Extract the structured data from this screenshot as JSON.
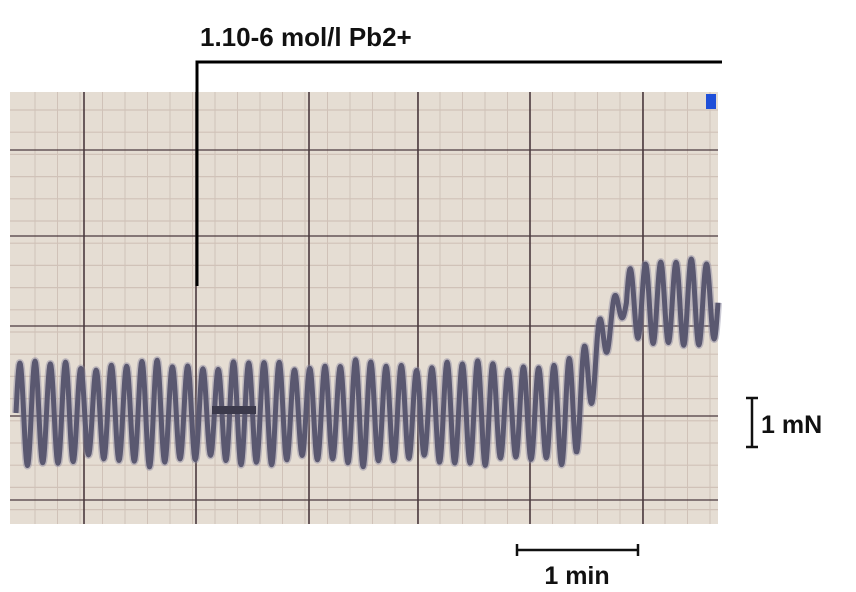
{
  "chart_data": {
    "type": "line",
    "annotation": {
      "text": "1.10-6 mol/l Pb2+"
    },
    "scale_bars": {
      "time": "1 min",
      "force": "1 mN"
    },
    "series": [
      {
        "oscillation_cycles": 46,
        "segments": [
          {
            "phase": "baseline",
            "cycle_start": 0,
            "cycle_end": 36,
            "center_mN": 0.9,
            "amplitude_mN": 1.95
          },
          {
            "phase": "rise",
            "cycle_start": 36,
            "cycle_end": 40,
            "center_from_mN": 0.9,
            "center_to_mN": 3.15,
            "amplitude_from_mN": 1.95,
            "amplitude_to_mN": 0.6
          },
          {
            "phase": "post_Pb2+",
            "cycle_start": 40,
            "cycle_end": 46,
            "center_mN": 3.15,
            "amplitude_mN": 1.6
          }
        ]
      }
    ],
    "grid": true,
    "colors": {
      "paper": "#e5ddd3",
      "grid_light": "#d0c2b8",
      "grid_major": "#4a3a3e",
      "trace": "#5a5870",
      "annotation": "#000000",
      "marker": "#1f4fd8"
    }
  }
}
